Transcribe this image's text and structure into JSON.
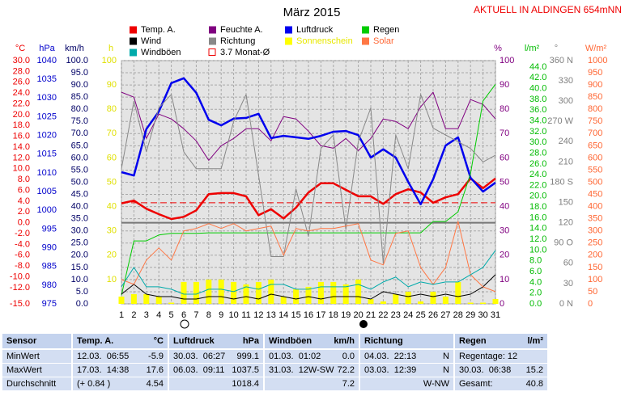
{
  "chart_data": {
    "type": "line",
    "title": "März 2015",
    "station": "AKTUELL IN ALDINGEN 654mNN",
    "x": [
      1,
      2,
      3,
      4,
      5,
      6,
      7,
      8,
      9,
      10,
      11,
      12,
      13,
      14,
      15,
      16,
      17,
      18,
      19,
      20,
      21,
      22,
      23,
      24,
      25,
      26,
      27,
      28,
      29,
      30,
      31
    ],
    "xlim": [
      1,
      31
    ],
    "xticks": [
      1,
      2,
      3,
      4,
      5,
      6,
      7,
      8,
      9,
      10,
      11,
      12,
      13,
      14,
      15,
      16,
      17,
      18,
      19,
      20,
      21,
      22,
      23,
      24,
      25,
      26,
      27,
      28,
      29,
      30,
      31
    ],
    "grid": true,
    "zero_line": true,
    "axes": [
      {
        "id": "temp",
        "label": "°C",
        "color": "#ee0000",
        "lim": [
          -15,
          30
        ],
        "ticks": [
          {
            "value": 30,
            "label": "30.0"
          },
          {
            "value": 28,
            "label": "28.0"
          },
          {
            "value": 26,
            "label": "26.0"
          },
          {
            "value": 24,
            "label": "24.0"
          },
          {
            "value": 22,
            "label": "22.0"
          },
          {
            "value": 20,
            "label": "20.0"
          },
          {
            "value": 18,
            "label": "18.0"
          },
          {
            "value": 16,
            "label": "16.0"
          },
          {
            "value": 14,
            "label": "14.0"
          },
          {
            "value": 12,
            "label": "12.0"
          },
          {
            "value": 10,
            "label": "10.0"
          },
          {
            "value": 8,
            "label": "8.0"
          },
          {
            "value": 6,
            "label": "6.0"
          },
          {
            "value": 4,
            "label": "4.0"
          },
          {
            "value": 2,
            "label": "2.0"
          },
          {
            "value": 0,
            "label": "0.0"
          },
          {
            "value": -2,
            "label": "-2.0"
          },
          {
            "value": -4,
            "label": "-4.0"
          },
          {
            "value": -6,
            "label": "-6.0"
          },
          {
            "value": -8,
            "label": "-8.0"
          },
          {
            "value": -10,
            "label": "-10.0"
          },
          {
            "value": -12,
            "label": "-12.0"
          },
          {
            "value": -15,
            "label": "-15.0"
          }
        ]
      },
      {
        "id": "hpa",
        "label": "hPa",
        "color": "#0000cc",
        "lim": [
          975,
          1040
        ],
        "ticks": [
          1040,
          1035,
          1030,
          1025,
          1020,
          1015,
          1010,
          1005,
          1000,
          995,
          990,
          985,
          980,
          975
        ]
      },
      {
        "id": "kmh",
        "label": "km/h",
        "color": "#000066",
        "lim": [
          0,
          100
        ],
        "grid": true,
        "ticks": [
          {
            "value": 100,
            "label": "100.0"
          },
          {
            "value": 95,
            "label": "95.0"
          },
          {
            "value": 90,
            "label": "90.0"
          },
          {
            "value": 85,
            "label": "85.0"
          },
          {
            "value": 80,
            "label": "80.0"
          },
          {
            "value": 75,
            "label": "75.0"
          },
          {
            "value": 70,
            "label": "70.0"
          },
          {
            "value": 65,
            "label": "65.0"
          },
          {
            "value": 60,
            "label": "60.0"
          },
          {
            "value": 55,
            "label": "55.0"
          },
          {
            "value": 50,
            "label": "50.0"
          },
          {
            "value": 45,
            "label": "45.0"
          },
          {
            "value": 40,
            "label": "40.0"
          },
          {
            "value": 35,
            "label": "35.0"
          },
          {
            "value": 30,
            "label": "30.0"
          },
          {
            "value": 25,
            "label": "25.0"
          },
          {
            "value": 20,
            "label": "20.0"
          },
          {
            "value": 15,
            "label": "15.0"
          },
          {
            "value": 10,
            "label": "10.0"
          },
          {
            "value": 5,
            "label": "5.0"
          },
          {
            "value": 0,
            "label": "0.0"
          }
        ]
      },
      {
        "id": "h",
        "label": "h",
        "color": "#e0e000",
        "lim": [
          0,
          100
        ],
        "ticks": [
          100,
          90,
          80,
          70,
          60,
          50,
          40,
          30,
          20,
          10
        ]
      },
      {
        "id": "pct",
        "label": "%",
        "color": "#800080",
        "lim": [
          0,
          100
        ],
        "ticks": [
          100,
          90,
          80,
          70,
          60,
          50,
          40,
          30,
          20,
          10,
          0
        ]
      },
      {
        "id": "rain",
        "label": "l/m²",
        "color": "#00bb00",
        "lim": [
          0,
          45.2
        ],
        "ticks": [
          {
            "value": 44,
            "label": "44.0"
          },
          {
            "value": 42,
            "label": "42.0"
          },
          {
            "value": 40,
            "label": "40.0"
          },
          {
            "value": 38,
            "label": "38.0"
          },
          {
            "value": 36,
            "label": "36.0"
          },
          {
            "value": 34,
            "label": "34.0"
          },
          {
            "value": 32,
            "label": "32.0"
          },
          {
            "value": 30,
            "label": "30.0"
          },
          {
            "value": 28,
            "label": "28.0"
          },
          {
            "value": 26,
            "label": "26.0"
          },
          {
            "value": 24,
            "label": "24.0"
          },
          {
            "value": 22,
            "label": "22.0"
          },
          {
            "value": 20,
            "label": "20.0"
          },
          {
            "value": 18,
            "label": "18.0"
          },
          {
            "value": 16,
            "label": "16.0"
          },
          {
            "value": 14,
            "label": "14.0"
          },
          {
            "value": 12,
            "label": "12.0"
          },
          {
            "value": 10,
            "label": "10.0"
          },
          {
            "value": 8,
            "label": "8.0"
          },
          {
            "value": 6,
            "label": "6.0"
          },
          {
            "value": 4,
            "label": "4.0"
          },
          {
            "value": 2,
            "label": "2.0"
          },
          {
            "value": 0,
            "label": "0.0"
          }
        ]
      },
      {
        "id": "dir",
        "label": "°",
        "color": "#808080",
        "lim": [
          0,
          360
        ],
        "ticks": [
          {
            "value": 360,
            "label": "360 N"
          },
          330,
          300,
          {
            "value": 270,
            "label": "270 W"
          },
          240,
          210,
          {
            "value": 180,
            "label": "180 S"
          },
          150,
          120,
          {
            "value": 90,
            "label": "90 O"
          },
          60,
          30,
          {
            "value": 0,
            "label": "0 N"
          }
        ]
      },
      {
        "id": "solar",
        "label": "W/m²",
        "color": "#ff6633",
        "lim": [
          0,
          1000
        ],
        "ticks": [
          1000,
          950,
          900,
          850,
          800,
          750,
          700,
          650,
          600,
          550,
          500,
          450,
          400,
          350,
          300,
          250,
          200,
          150,
          100,
          50,
          0
        ]
      }
    ],
    "series": [
      {
        "name": "Temp. A.",
        "color": "#ee0000",
        "axis": "temp",
        "width": 2.5,
        "values": [
          3.6,
          4.1,
          2.6,
          1.6,
          0.7,
          1.1,
          2.3,
          5.3,
          5.5,
          5.5,
          4.9,
          1.4,
          2.5,
          0.8,
          2.8,
          5.6,
          7.3,
          7.3,
          6.1,
          4.9,
          4.9,
          3.5,
          5.3,
          6.2,
          5.6,
          3.7,
          4.7,
          5.3,
          8.2,
          6.4,
          8.2
        ]
      },
      {
        "name": "Feuchte A.",
        "color": "#800080",
        "axis": "pct",
        "width": 1,
        "values": [
          87,
          85,
          68,
          78,
          76,
          72,
          67,
          59,
          65,
          68,
          72,
          72,
          67,
          77,
          76,
          71,
          65,
          64,
          68,
          63,
          68,
          76,
          75,
          72,
          81,
          87,
          72,
          72,
          84,
          82,
          76
        ]
      },
      {
        "name": "Luftdruck",
        "color": "#0000ee",
        "axis": "hpa",
        "width": 2.5,
        "values": [
          1010.2,
          1009.3,
          1021.7,
          1026.4,
          1034,
          1035.3,
          1031.4,
          1024.2,
          1022.7,
          1024.5,
          1024.7,
          1025.8,
          1019.3,
          1019.9,
          1019.5,
          1019.1,
          1019.9,
          1021,
          1021.2,
          1020.1,
          1014.1,
          1016.3,
          1014.1,
          1007.6,
          1001.6,
          1008.3,
          1017.3,
          1019.5,
          1008.7,
          1005,
          1007.4
        ]
      },
      {
        "name": "Regen",
        "color": "#00cc00",
        "axis": "rain",
        "width": 1,
        "values": [
          1.6,
          11.7,
          11.7,
          12.8,
          13.1,
          13.1,
          13.1,
          13.2,
          13.2,
          13.2,
          13.2,
          13.2,
          13.2,
          13.2,
          13.2,
          13.2,
          13.2,
          13.2,
          13.2,
          13.2,
          13.2,
          13.2,
          13.2,
          13.2,
          13.2,
          15.3,
          15.3,
          17.1,
          24.2,
          37.7,
          40.8
        ]
      },
      {
        "name": "Wind",
        "color": "#000000",
        "axis": "kmh",
        "width": 1,
        "values": [
          4,
          8,
          4,
          3,
          3,
          2,
          2,
          3,
          3,
          2,
          3,
          2,
          4,
          3,
          2,
          3,
          2,
          3,
          3,
          3,
          2,
          5,
          4,
          3,
          4,
          3,
          4,
          3,
          4,
          7,
          12
        ]
      },
      {
        "name": "Richtung",
        "color": "#888888",
        "axis": "dir",
        "width": 1,
        "values": [
          200,
          300,
          225,
          290,
          310,
          225,
          200,
          200,
          200,
          270,
          310,
          190,
          70,
          70,
          170,
          100,
          230,
          250,
          110,
          240,
          290,
          60,
          250,
          200,
          310,
          260,
          250,
          240,
          230,
          210,
          220
        ]
      },
      {
        "name": "Sonnenschein",
        "color": "#ffff00",
        "label_color": "#e8e800",
        "axis": "h",
        "mark": "bar",
        "values": [
          3,
          4,
          4,
          3,
          0.5,
          9,
          9,
          10,
          10,
          9,
          8,
          9,
          10,
          3,
          6,
          7,
          9,
          9,
          8,
          10,
          2,
          1,
          4,
          5,
          1,
          5,
          3,
          9,
          0.5,
          0.5,
          2
        ]
      },
      {
        "name": "Solar",
        "color": "#ff7744",
        "label_color": "#ff6633",
        "axis": "solar",
        "width": 1,
        "values": [
          100,
          80,
          180,
          230,
          180,
          300,
          310,
          330,
          310,
          330,
          300,
          310,
          320,
          200,
          310,
          300,
          310,
          310,
          320,
          330,
          180,
          160,
          290,
          300,
          150,
          80,
          150,
          340,
          120,
          70,
          50
        ]
      },
      {
        "name": "Windböen",
        "color": "#00aaaa",
        "axis": "kmh",
        "width": 1,
        "values": [
          7,
          15,
          7,
          7,
          6,
          4,
          4,
          6,
          6,
          5,
          7,
          6,
          8,
          8,
          6,
          6,
          7,
          7,
          7,
          8,
          6,
          9,
          11,
          7,
          9,
          8,
          9,
          9,
          12,
          15,
          22
        ]
      }
    ],
    "reference_lines": [
      {
        "name": "3.7 Monat-Ø",
        "value": 3.7,
        "axis": "temp",
        "color": "#ee0000"
      }
    ]
  },
  "table": {
    "header": [
      {
        "left": "Sensor"
      },
      {
        "left": "Temp. A.",
        "right": "°C"
      },
      {
        "left": "Luftdruck",
        "right": "hPa"
      },
      {
        "left": "Windböen",
        "right": "km/h"
      },
      {
        "left": "Richtung"
      },
      {
        "left": "Regen",
        "right": "l/m²"
      }
    ],
    "rows": [
      [
        {
          "left": "MinWert"
        },
        {
          "left": "12.03.  06:55",
          "right": "-5.9"
        },
        {
          "left": "30.03.  06:27",
          "right": "999.1"
        },
        {
          "left": "01.03.  01:02",
          "right": "0.0"
        },
        {
          "left": "04.03.  22:13",
          "right": "N"
        },
        {
          "left": "Regentage: 12"
        }
      ],
      [
        {
          "left": "MaxWert"
        },
        {
          "left": "17.03.  14:38",
          "right": "17.6"
        },
        {
          "left": "06.03.  09:11",
          "right": "1037.5"
        },
        {
          "left": "31.03.  12W-SW",
          "right": "72.2"
        },
        {
          "left": "03.03.  12:39",
          "right": "N"
        },
        {
          "left": "30.03.  06:38",
          "right": "15.2"
        }
      ],
      [
        {
          "left": "Durchschnitt"
        },
        {
          "left": "(+ 0.84 )",
          "right": "4.54"
        },
        {
          "right": "1018.4"
        },
        {
          "right": "7.2"
        },
        {
          "right": "W-NW"
        },
        {
          "left": "Gesamt:",
          "right": "40.8"
        }
      ]
    ]
  }
}
